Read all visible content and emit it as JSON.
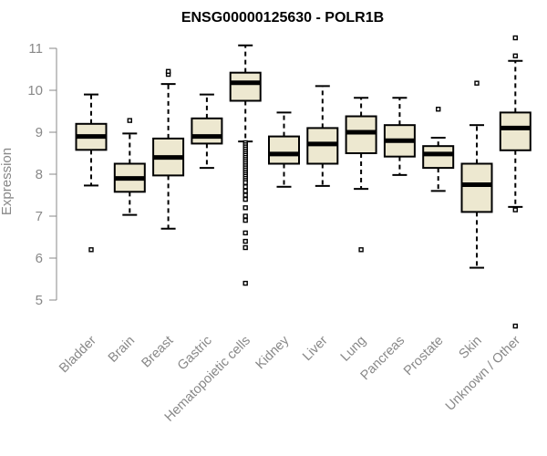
{
  "chart_data": {
    "type": "box",
    "title": "ENSG00000125630 - POLR1B",
    "xlabel": "",
    "ylabel": "Expression",
    "ylim": [
      4.2,
      11.5
    ],
    "yticks": [
      5,
      6,
      7,
      8,
      9,
      10,
      11
    ],
    "box_fill": "#ede8d0",
    "axis_color": "#888888",
    "grid": false,
    "categories": [
      "Bladder",
      "Brain",
      "Breast",
      "Gastric",
      "Hematopoietic cells",
      "Kidney",
      "Liver",
      "Lung",
      "Pancreas",
      "Prostate",
      "Skin",
      "Unknown / Other"
    ],
    "boxes": [
      {
        "category": "Bladder",
        "whisker_low": 7.73,
        "q1": 8.58,
        "median": 8.9,
        "q3": 9.2,
        "whisker_high": 9.9,
        "outliers": [
          6.2
        ]
      },
      {
        "category": "Brain",
        "whisker_low": 7.03,
        "q1": 7.58,
        "median": 7.9,
        "q3": 8.25,
        "whisker_high": 8.97,
        "outliers": [
          9.28
        ]
      },
      {
        "category": "Breast",
        "whisker_low": 6.7,
        "q1": 7.97,
        "median": 8.4,
        "q3": 8.85,
        "whisker_high": 10.15,
        "outliers": [
          10.38,
          10.45
        ]
      },
      {
        "category": "Gastric",
        "whisker_low": 8.15,
        "q1": 8.73,
        "median": 8.9,
        "q3": 9.33,
        "whisker_high": 9.9,
        "outliers": []
      },
      {
        "category": "Hematopoietic cells",
        "whisker_low": 8.78,
        "q1": 9.75,
        "median": 10.18,
        "q3": 10.42,
        "whisker_high": 11.07,
        "outliers": [
          8.75,
          8.7,
          8.65,
          8.6,
          8.55,
          8.5,
          8.45,
          8.4,
          8.35,
          8.3,
          8.25,
          8.2,
          8.15,
          8.1,
          8.05,
          8.0,
          7.95,
          7.9,
          7.85,
          7.8,
          7.7,
          7.6,
          7.5,
          7.4,
          7.2,
          7.0,
          6.9,
          6.6,
          6.4,
          6.25,
          5.4
        ]
      },
      {
        "category": "Kidney",
        "whisker_low": 7.7,
        "q1": 8.25,
        "median": 8.48,
        "q3": 8.9,
        "whisker_high": 9.47,
        "outliers": []
      },
      {
        "category": "Liver",
        "whisker_low": 7.72,
        "q1": 8.25,
        "median": 8.72,
        "q3": 9.1,
        "whisker_high": 10.1,
        "outliers": []
      },
      {
        "category": "Lung",
        "whisker_low": 7.65,
        "q1": 8.5,
        "median": 9.0,
        "q3": 9.38,
        "whisker_high": 9.82,
        "outliers": [
          6.2
        ]
      },
      {
        "category": "Pancreas",
        "whisker_low": 7.98,
        "q1": 8.42,
        "median": 8.8,
        "q3": 9.17,
        "whisker_high": 9.82,
        "outliers": []
      },
      {
        "category": "Prostate",
        "whisker_low": 7.6,
        "q1": 8.15,
        "median": 8.48,
        "q3": 8.67,
        "whisker_high": 8.87,
        "outliers": [
          9.55
        ]
      },
      {
        "category": "Skin",
        "whisker_low": 5.77,
        "q1": 7.1,
        "median": 7.75,
        "q3": 8.25,
        "whisker_high": 9.17,
        "outliers": [
          10.17
        ]
      },
      {
        "category": "Unknown / Other",
        "whisker_low": 7.22,
        "q1": 8.57,
        "median": 9.1,
        "q3": 9.47,
        "whisker_high": 10.7,
        "outliers": [
          11.25,
          10.82,
          7.15,
          4.38
        ]
      }
    ]
  }
}
